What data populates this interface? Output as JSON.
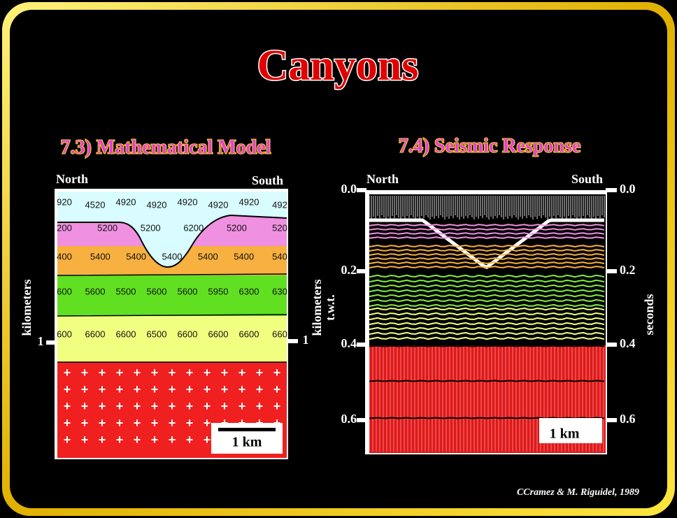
{
  "title": "Canyons",
  "left_panel": {
    "heading": "7.3) Mathematical Model",
    "north": "North",
    "south": "South",
    "axis_label": "kilometers",
    "tick_left": "1",
    "tick_right": "1",
    "scale_bar": "1 km",
    "velocity_rows": [
      [
        "920",
        "4520",
        "4920",
        "4920",
        "4920",
        "4920",
        "4920",
        "492"
      ],
      [
        "200",
        "5200",
        "5200",
        "6200",
        "5200",
        "520"
      ],
      [
        "400",
        "5400",
        "5400",
        "5400",
        "5400",
        "5400",
        "540"
      ],
      [
        "600",
        "5600",
        "5500",
        "5600",
        "5600",
        "5950",
        "6300",
        "630"
      ],
      [
        "600",
        "6600",
        "6600",
        "6500",
        "6600",
        "6600",
        "6600",
        "660"
      ]
    ]
  },
  "right_panel": {
    "heading": "7.4) Seismic Response",
    "north": "North",
    "south": "South",
    "left_axis_label": [
      "kilometers",
      "t.w.t."
    ],
    "right_axis_label": "seconds",
    "ticks_left": [
      "0.0",
      "0.2",
      "0.4",
      "0.6"
    ],
    "ticks_right": [
      "0.0",
      "0.2",
      "0.4",
      "0.6"
    ],
    "scale_bar": "1 km"
  },
  "credit": "CCramez & M. Riguidel, 1989"
}
